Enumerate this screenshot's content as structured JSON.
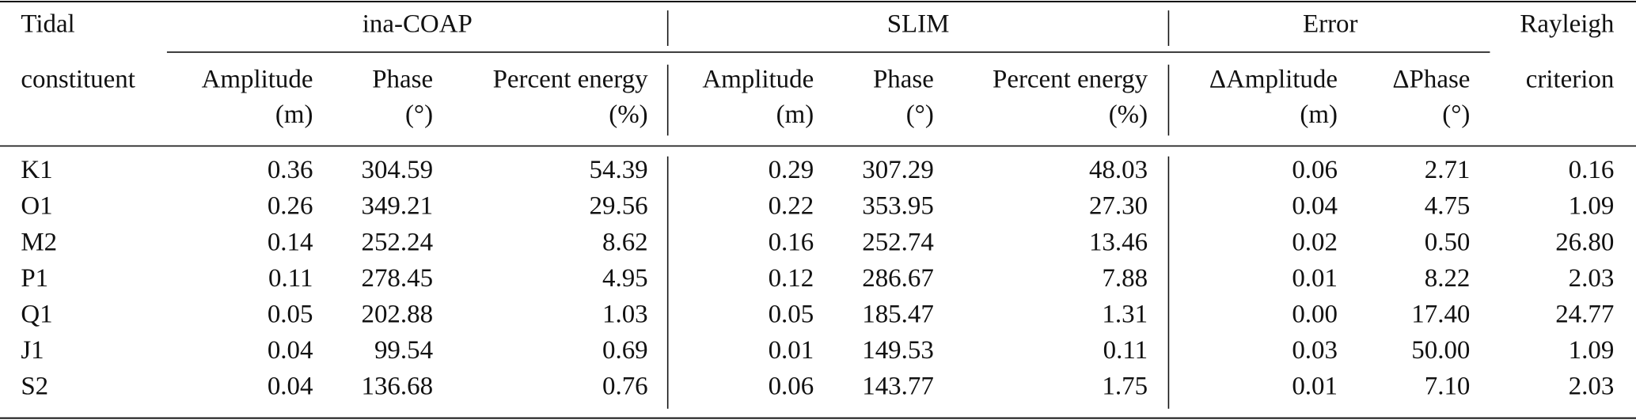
{
  "table": {
    "groups": [
      "Tidal",
      "ina-COAP",
      "SLIM",
      "Error",
      "Rayleigh"
    ],
    "columns": [
      [
        "constituent"
      ],
      [
        "Amplitude",
        "(m)"
      ],
      [
        "Phase",
        "(°)"
      ],
      [
        "Percent energy",
        "(%)"
      ],
      [
        "Amplitude",
        "(m)"
      ],
      [
        "Phase",
        "(°)"
      ],
      [
        "Percent energy",
        "(%)"
      ],
      [
        "ΔAmplitude",
        "(m)"
      ],
      [
        "ΔPhase",
        "(°)"
      ],
      [
        "criterion"
      ]
    ],
    "rows": [
      [
        "K1",
        "0.36",
        "304.59",
        "54.39",
        "0.29",
        "307.29",
        "48.03",
        "0.06",
        "2.71",
        "0.16"
      ],
      [
        "O1",
        "0.26",
        "349.21",
        "29.56",
        "0.22",
        "353.95",
        "27.30",
        "0.04",
        "4.75",
        "1.09"
      ],
      [
        "M2",
        "0.14",
        "252.24",
        "8.62",
        "0.16",
        "252.74",
        "13.46",
        "0.02",
        "0.50",
        "26.80"
      ],
      [
        "P1",
        "0.11",
        "278.45",
        "4.95",
        "0.12",
        "286.67",
        "7.88",
        "0.01",
        "8.22",
        "2.03"
      ],
      [
        "Q1",
        "0.05",
        "202.88",
        "1.03",
        "0.05",
        "185.47",
        "1.31",
        "0.00",
        "17.40",
        "24.77"
      ],
      [
        "J1",
        "0.04",
        "99.54",
        "0.69",
        "0.01",
        "149.53",
        "0.11",
        "0.03",
        "50.00",
        "1.09"
      ],
      [
        "S2",
        "0.04",
        "136.68",
        "0.76",
        "0.06",
        "143.77",
        "1.75",
        "0.01",
        "7.10",
        "2.03"
      ]
    ]
  }
}
